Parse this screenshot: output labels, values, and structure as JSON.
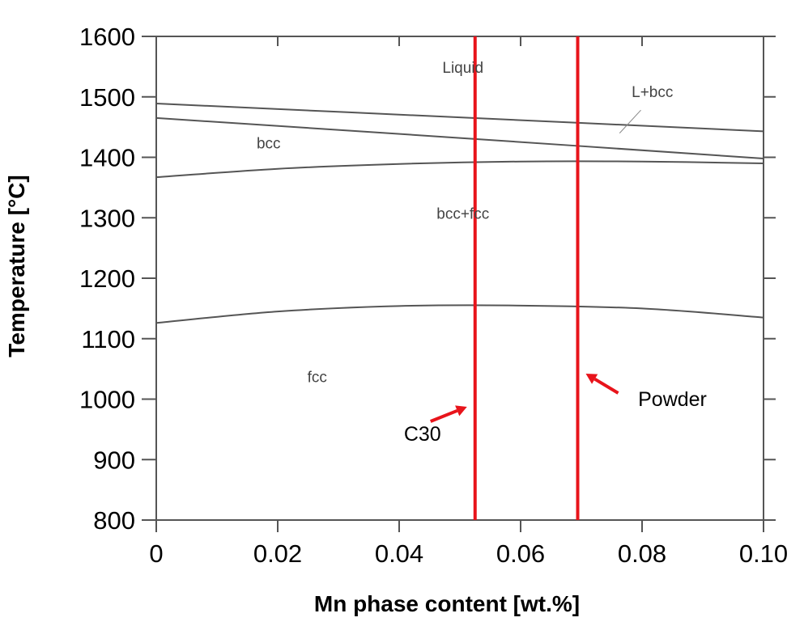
{
  "chart_data": {
    "type": "line",
    "title": "",
    "xlabel": "Mn phase content [wt.%]",
    "ylabel": "Temperature [°C]",
    "xlim": [
      0,
      0.1
    ],
    "ylim": [
      800,
      1600
    ],
    "x_ticks": [
      "0",
      "0.02",
      "0.04",
      "0.06",
      "0.08",
      "0.10"
    ],
    "y_ticks": [
      "800",
      "900",
      "1000",
      "1100",
      "1200",
      "1300",
      "1400",
      "1500",
      "1600"
    ],
    "grid": false,
    "series": [
      {
        "x": [
          0,
          0.05,
          0.1
        ],
        "y": [
          1489,
          1466,
          1443
        ],
        "color": "#555555"
      },
      {
        "x": [
          0,
          0.05,
          0.1
        ],
        "y": [
          1465,
          1432,
          1398
        ],
        "color": "#555555"
      },
      {
        "x": [
          0,
          0.02,
          0.04,
          0.06,
          0.08,
          0.1
        ],
        "y": [
          1367,
          1381,
          1389,
          1393,
          1393,
          1390
        ],
        "color": "#555555"
      },
      {
        "x": [
          0,
          0.02,
          0.04,
          0.058,
          0.08,
          0.1
        ],
        "y": [
          1126,
          1145,
          1154,
          1155,
          1150,
          1135
        ],
        "color": "#555555"
      }
    ],
    "region_labels": [
      {
        "text": "Liquid",
        "x": 0.0505,
        "y": 1540
      },
      {
        "text": "L+bcc",
        "x": 0.0817,
        "y": 1500
      },
      {
        "text": "bcc",
        "x": 0.0185,
        "y": 1415
      },
      {
        "text": "bcc+fcc",
        "x": 0.0505,
        "y": 1298
      },
      {
        "text": "fcc",
        "x": 0.0265,
        "y": 1028
      }
    ],
    "vertical_lines": [
      {
        "label": "C30",
        "x": 0.0525,
        "color": "#e8141b"
      },
      {
        "label": "Powder",
        "x": 0.0694,
        "color": "#e8141b"
      }
    ]
  }
}
